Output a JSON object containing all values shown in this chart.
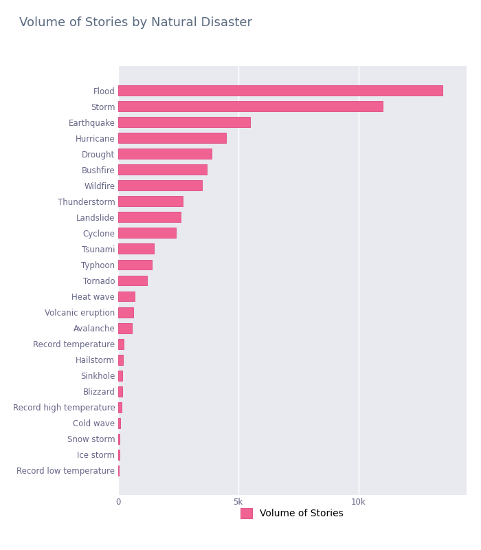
{
  "categories": [
    "Record low temperature",
    "Ice storm",
    "Snow storm",
    "Cold wave",
    "Record high temperature",
    "Blizzard",
    "Sinkhole",
    "Hailstorm",
    "Record temperature",
    "Avalanche",
    "Volcanic eruption",
    "Heat wave",
    "Tornado",
    "Typhoon",
    "Tsunami",
    "Cyclone",
    "Landslide",
    "Thunderstorm",
    "Wildfire",
    "Bushfire",
    "Drought",
    "Hurricane",
    "Earthquake",
    "Storm",
    "Flood"
  ],
  "values": [
    55,
    65,
    75,
    100,
    160,
    175,
    195,
    220,
    250,
    590,
    640,
    700,
    1200,
    1400,
    1500,
    2400,
    2600,
    2700,
    3500,
    3700,
    3900,
    4500,
    5500,
    11000,
    13500
  ],
  "bar_color": "#f06292",
  "bar_edge_color": "#e0558a",
  "plot_bg_color": "#e8eaf0",
  "fig_bg_color": "#ffffff",
  "title": "Volume of Stories by Natural Disaster",
  "title_color": "#5a6a80",
  "title_fontsize": 13,
  "legend_label": "Volume of Stories",
  "xtick_labels": [
    "0",
    "5k",
    "10k"
  ],
  "xtick_values": [
    0,
    5000,
    10000
  ],
  "xlim_max": 14500,
  "figsize": [
    7.0,
    8.0
  ],
  "dpi": 100,
  "label_fontsize": 8.5,
  "tick_color": "#666688"
}
